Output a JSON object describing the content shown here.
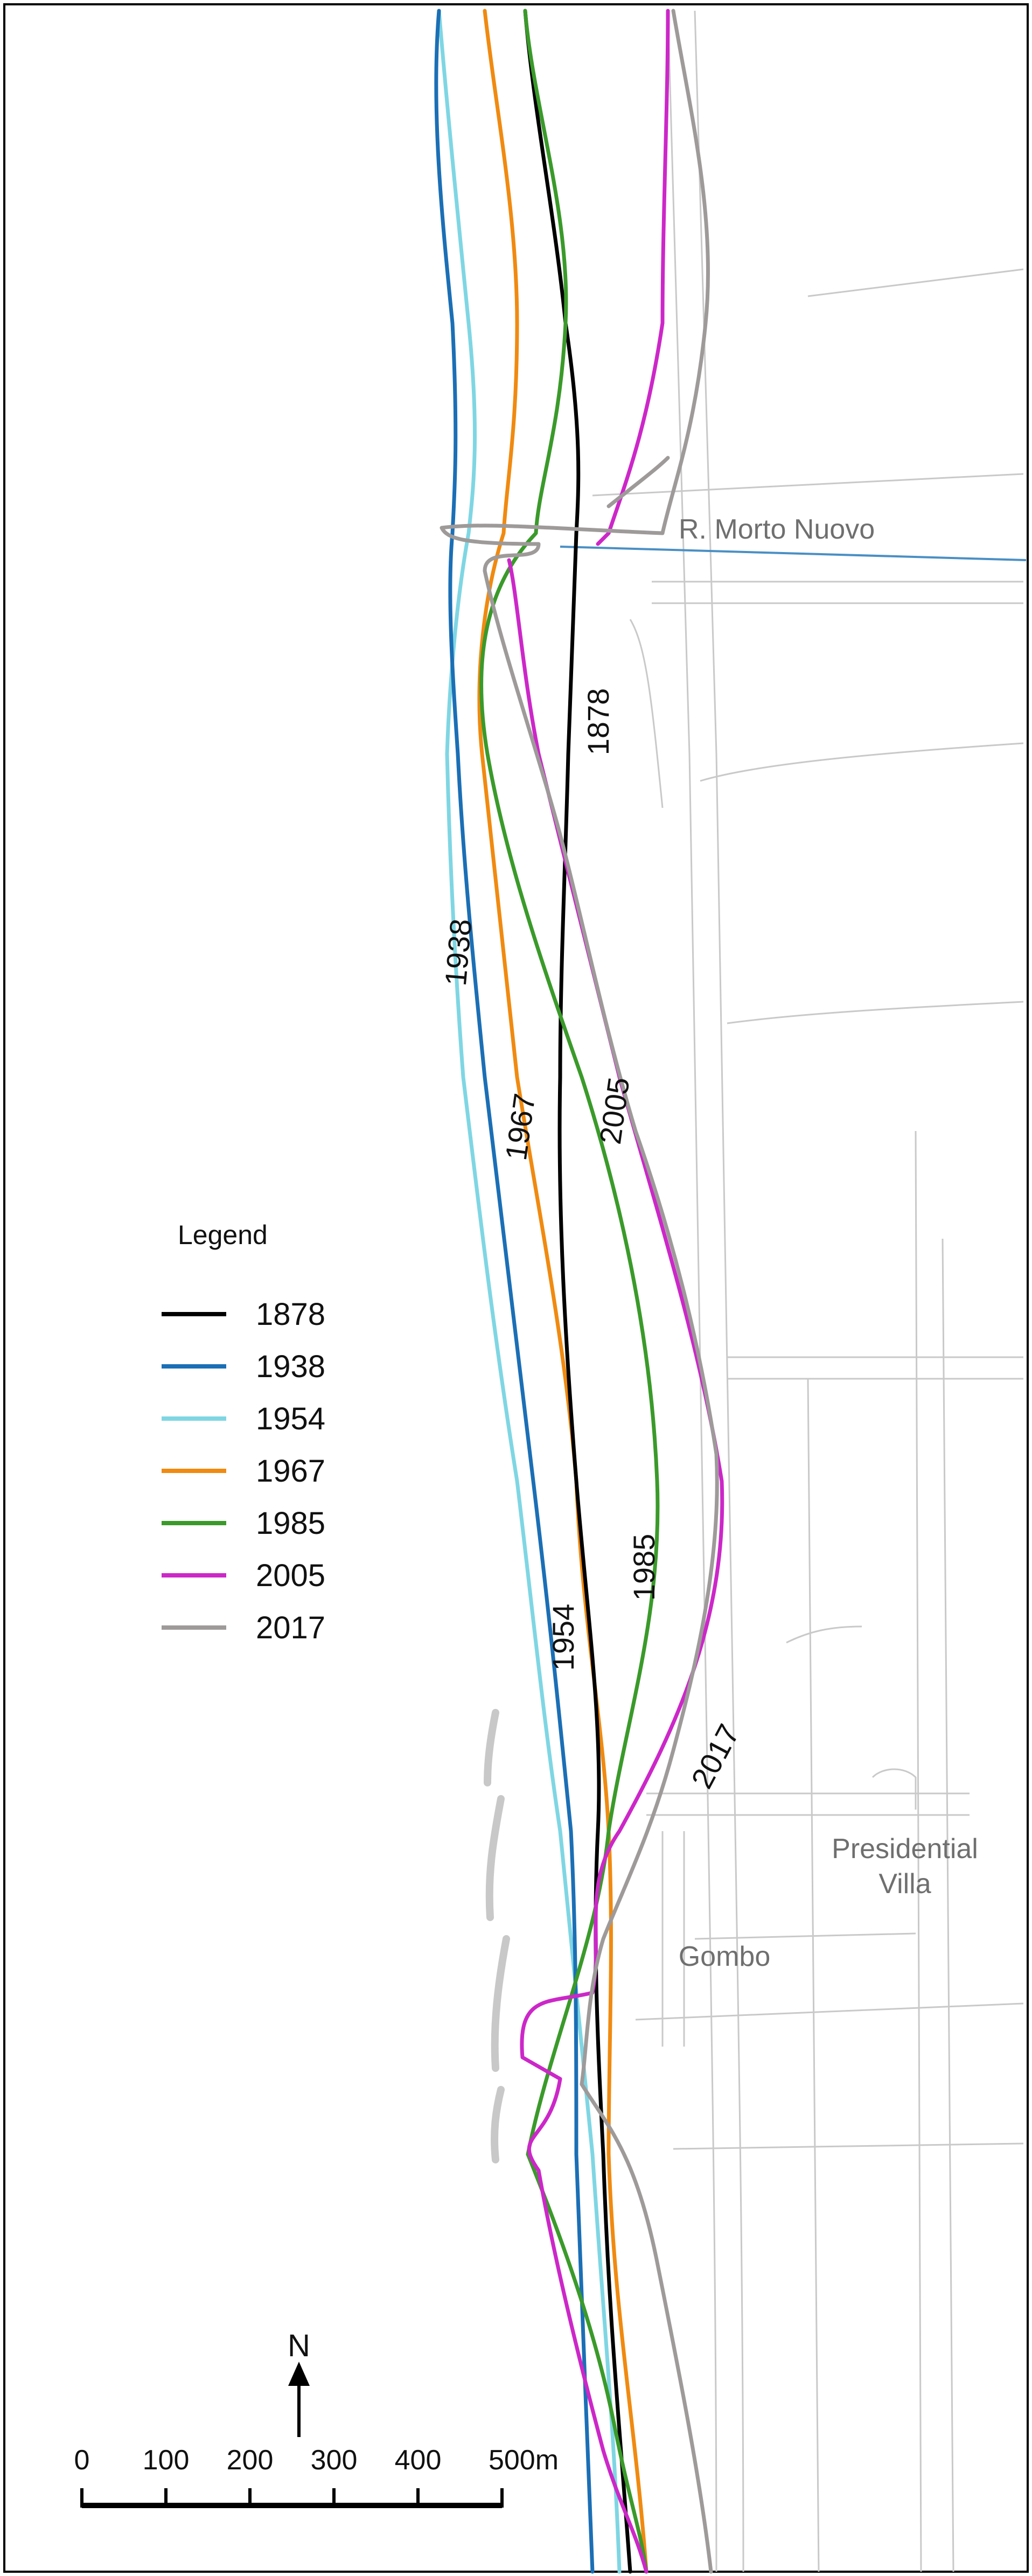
{
  "legend": {
    "title": "Legend",
    "items": [
      {
        "year": "1878",
        "color": "#000000"
      },
      {
        "year": "1938",
        "color": "#1b6fb5"
      },
      {
        "year": "1954",
        "color": "#7fd6e3"
      },
      {
        "year": "1967",
        "color": "#f08a10"
      },
      {
        "year": "1985",
        "color": "#3a9a2a"
      },
      {
        "year": "2005",
        "color": "#cc27c8"
      },
      {
        "year": "2017",
        "color": "#9e9a9a"
      }
    ]
  },
  "line_labels": {
    "l1878": "1878",
    "l1938": "1938",
    "l1967": "1967",
    "l2005": "2005",
    "l1954": "1954",
    "l1985": "1985",
    "l2017": "2017"
  },
  "places": {
    "river": "R. Morto Nuovo",
    "villa_line1": "Presidential",
    "villa_line2": "Villa",
    "gombo": "Gombo"
  },
  "north_arrow": {
    "label": "N"
  },
  "scale_bar": {
    "ticks": [
      "0",
      "100",
      "200",
      "300",
      "400",
      "500m"
    ]
  },
  "colors": {
    "roads": "#c9c9c9",
    "river": "#4a8fc4",
    "frame": "#000000"
  }
}
